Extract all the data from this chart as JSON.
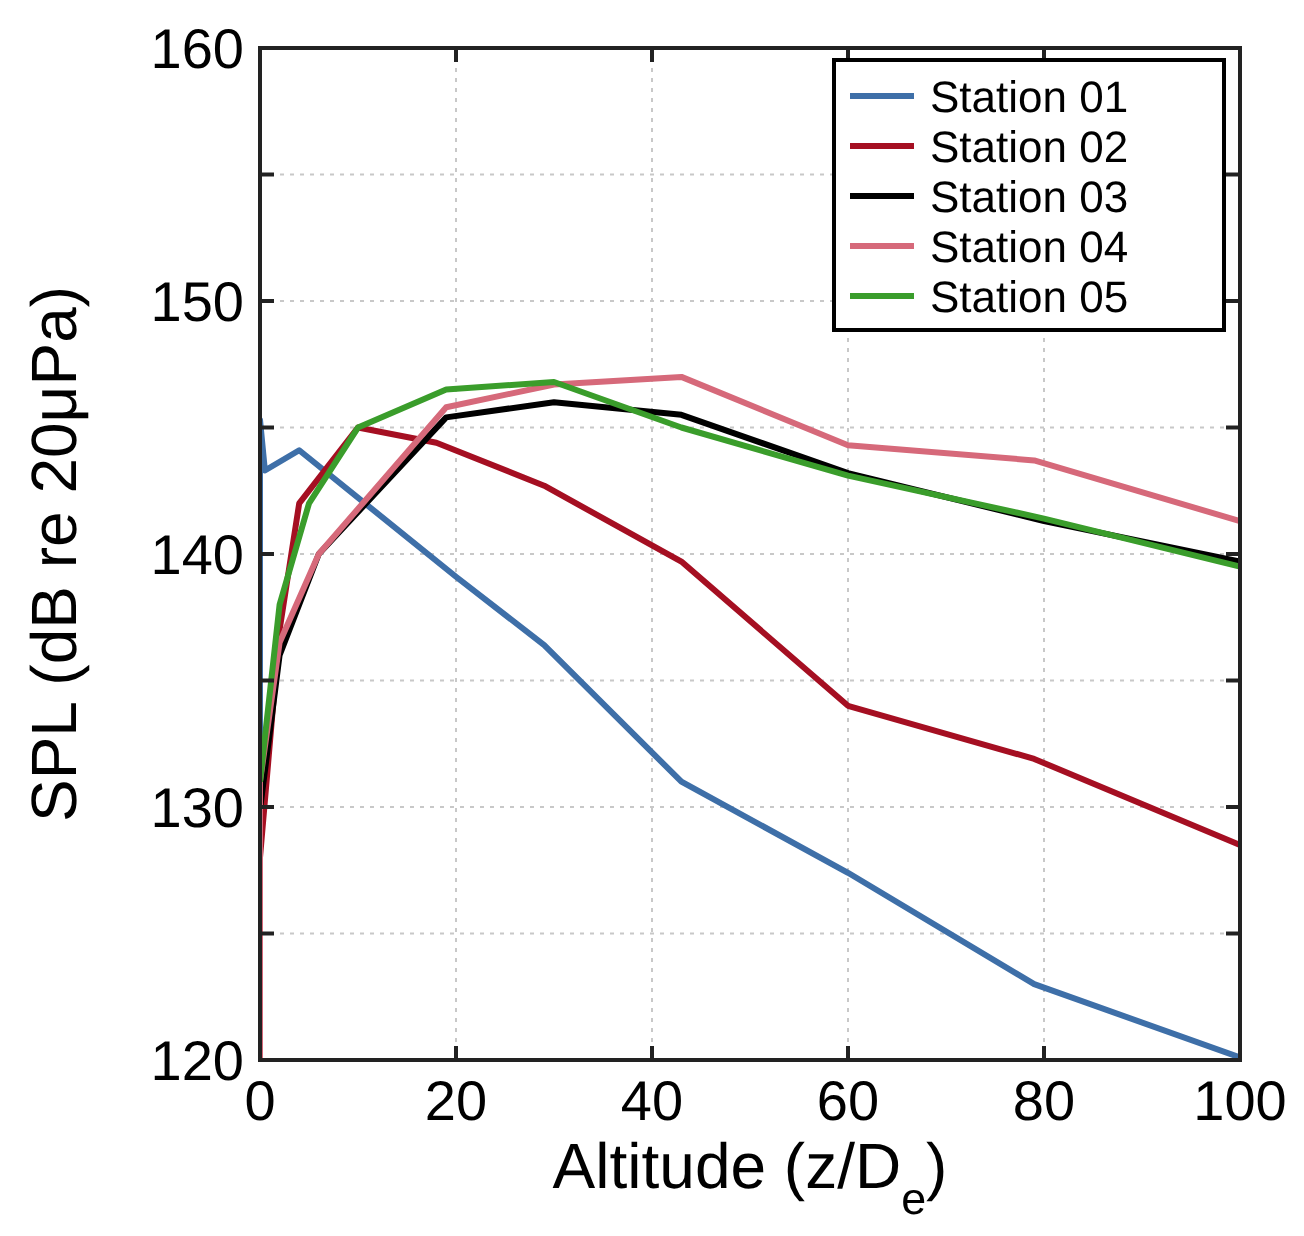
{
  "chart_data": {
    "type": "line",
    "xlabel": "Altitude (z/D$_{e}$)",
    "ylabel": "SPL (dB re 20μPa)",
    "xlim": [
      0,
      100
    ],
    "xticks": [
      0,
      20,
      40,
      60,
      80,
      100
    ],
    "ylim": [
      120,
      160
    ],
    "yticks": [
      120,
      {
        "value": 125,
        "label": null
      },
      130,
      {
        "value": 135,
        "label": null
      },
      140,
      {
        "value": 145,
        "label": null
      },
      150,
      {
        "value": 155,
        "label": null
      },
      160
    ],
    "grid": true,
    "legend": "top right",
    "line_style": "solid",
    "marker": "none",
    "series": [
      {
        "name": "Station 01",
        "color": "#3e6fa8",
        "x": [
          0,
          0,
          0.5,
          4,
          20,
          29,
          43,
          60,
          79,
          100
        ],
        "values": [
          120,
          145.3,
          143.3,
          144.1,
          139.1,
          136.4,
          131,
          127.4,
          123,
          120.1
        ]
      },
      {
        "name": "Station 02",
        "color": "#a50f22",
        "x": [
          0,
          0,
          2,
          4,
          10,
          18,
          29,
          43,
          60,
          79,
          100
        ],
        "values": [
          120,
          128,
          137,
          142,
          145,
          144.4,
          142.7,
          139.7,
          134,
          131.9,
          128.5
        ]
      },
      {
        "name": "Station 03",
        "color": "#000000",
        "x": [
          0,
          2,
          6,
          19,
          30,
          43,
          60,
          80,
          100
        ],
        "values": [
          129.9,
          136,
          140,
          145.4,
          146,
          145.5,
          143.2,
          141.3,
          139.7
        ]
      },
      {
        "name": "Station 04",
        "color": "#d6697a",
        "x": [
          0,
          0,
          2,
          6,
          19,
          30,
          43,
          60,
          79,
          100
        ],
        "values": [
          120,
          131,
          136.5,
          140,
          145.8,
          146.7,
          147,
          144.3,
          143.7,
          141.3
        ]
      },
      {
        "name": "Station 05",
        "color": "#3a9d2b",
        "x": [
          0,
          2,
          5,
          10,
          19,
          30,
          43,
          60,
          80,
          100
        ],
        "values": [
          131,
          138,
          142,
          145,
          146.5,
          146.8,
          145,
          143.1,
          141.4,
          139.5
        ]
      }
    ]
  }
}
